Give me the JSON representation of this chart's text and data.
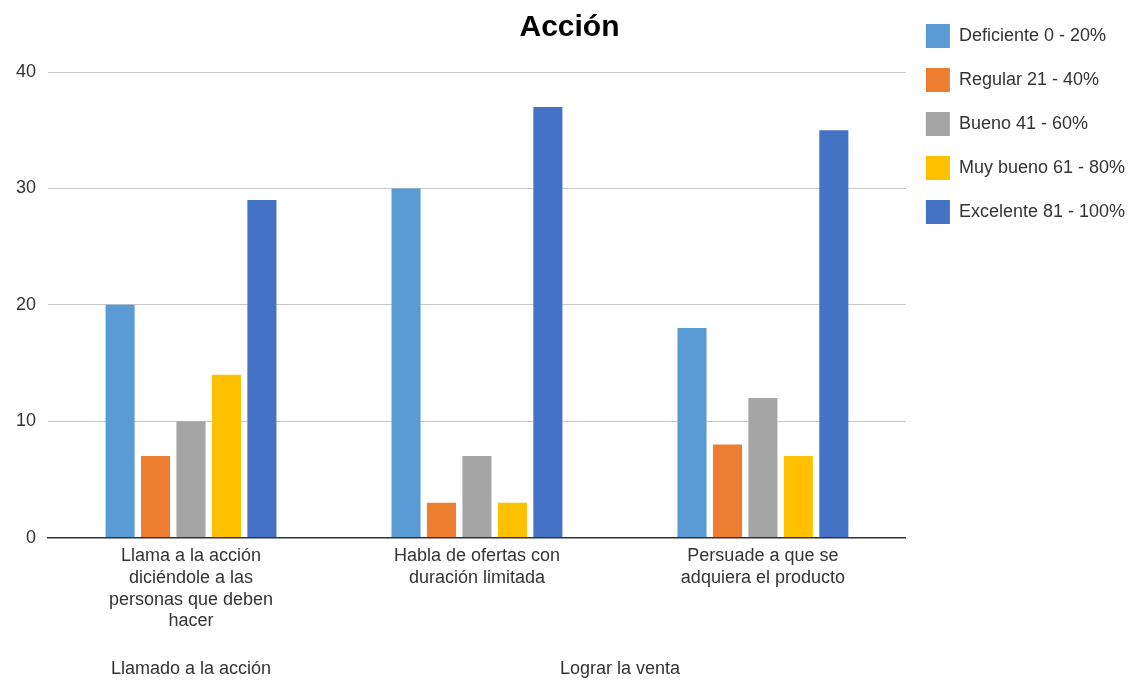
{
  "chart_data": {
    "type": "bar",
    "title": "Acción",
    "categories": [
      "Llama a la acción diciéndole a las personas que deben hacer",
      "Habla de ofertas con duración limitada",
      "Persuade a que se adquiera el producto"
    ],
    "series": [
      {
        "name": "Deficiente 0 - 20%",
        "color": "#5b9bd5",
        "values": [
          20,
          30,
          18
        ]
      },
      {
        "name": "Regular 21 - 40%",
        "color": "#ed7d31",
        "values": [
          7,
          3,
          8
        ]
      },
      {
        "name": "Bueno 41 - 60%",
        "color": "#a5a5a5",
        "values": [
          10,
          7,
          12
        ]
      },
      {
        "name": "Muy bueno 61 - 80%",
        "color": "#ffc000",
        "values": [
          14,
          3,
          7
        ]
      },
      {
        "name": "Excelente 81 - 100%",
        "color": "#4472c4",
        "values": [
          29,
          37,
          35
        ]
      }
    ],
    "ylim": [
      0,
      40
    ],
    "yticks": [
      0,
      10,
      20,
      30,
      40
    ],
    "grid": "y",
    "legend": "top right",
    "annotations": [
      "Llamado a la acción",
      "Lograr la venta"
    ]
  }
}
